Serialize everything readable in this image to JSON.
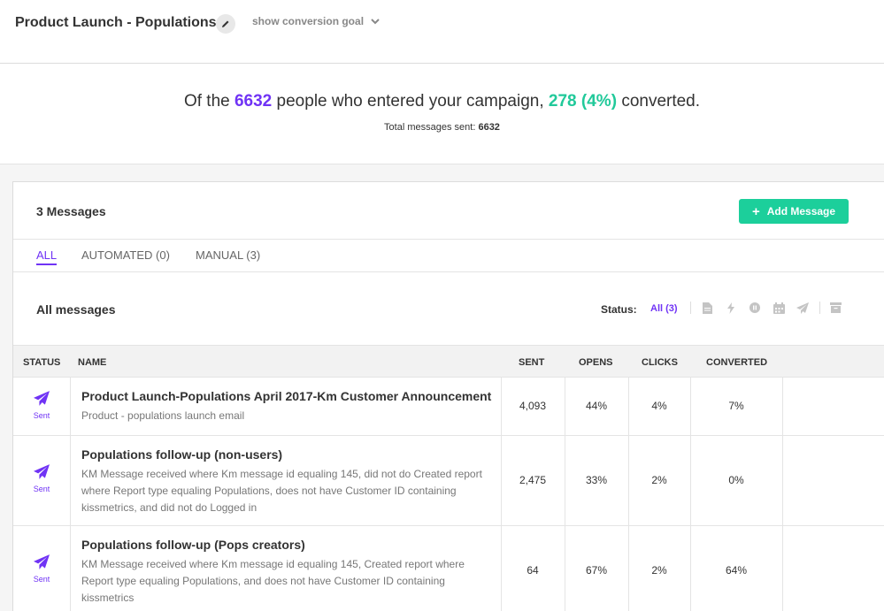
{
  "header": {
    "title": "Product Launch - Populations",
    "goal_label": "show conversion goal"
  },
  "summary": {
    "prefix": "Of the",
    "entered": "6632",
    "middle": "people who entered your campaign,",
    "converted": "278 (4%)",
    "suffix": "converted.",
    "total_label": "Total messages sent:",
    "total_value": "6632"
  },
  "panel": {
    "count_label": "3 Messages",
    "add_label": "Add Message"
  },
  "tabs": [
    {
      "label": "ALL"
    },
    {
      "label": "AUTOMATED (0)"
    },
    {
      "label": "MANUAL (3)"
    }
  ],
  "filter": {
    "title": "All messages",
    "status_label": "Status:",
    "status_all": "All (3)",
    "icons": [
      "document-icon",
      "lightning-icon",
      "pause-icon",
      "calendar-icon",
      "send-icon",
      "archive-icon"
    ]
  },
  "table": {
    "headers": {
      "status": "STATUS",
      "name": "NAME",
      "sent": "SENT",
      "opens": "OPENS",
      "clicks": "CLICKS",
      "converted": "CONVERTED"
    },
    "rows": [
      {
        "status": "Sent",
        "name": "Product Launch-Populations April 2017-Km Customer Announcement",
        "desc": "Product - populations launch email",
        "sent": "4,093",
        "opens": "44%",
        "clicks": "4%",
        "converted": "7%"
      },
      {
        "status": "Sent",
        "name": "Populations follow-up (non-users)",
        "desc": "KM Message received where Km message id equaling 145, did not do Created report where Report type equaling Populations, does not have Customer ID containing kissmetrics, and did not do Logged in",
        "sent": "2,475",
        "opens": "33%",
        "clicks": "2%",
        "converted": "0%"
      },
      {
        "status": "Sent",
        "name": "Populations follow-up (Pops creators)",
        "desc": "KM Message received where Km message id equaling 145, Created report where Report type equaling Populations, and does not have Customer ID containing kissmetrics",
        "sent": "64",
        "opens": "67%",
        "clicks": "2%",
        "converted": "64%"
      }
    ]
  },
  "colors": {
    "accent": "#7033f5",
    "success": "#1ccf9b"
  }
}
